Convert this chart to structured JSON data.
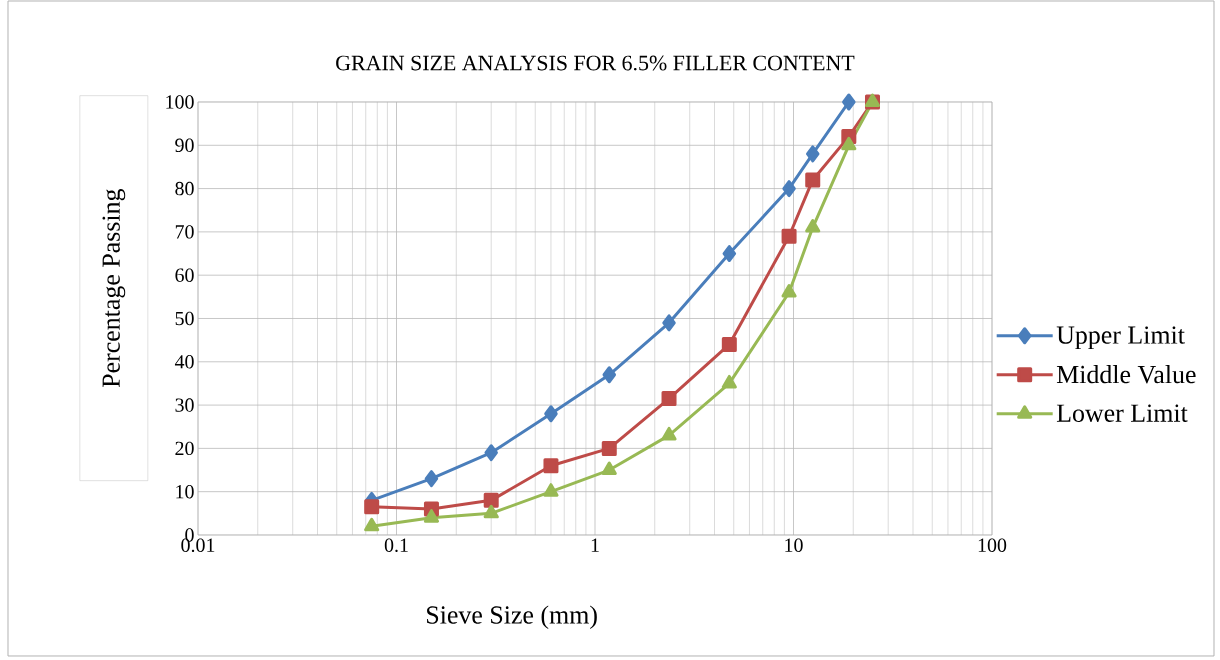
{
  "chart_data": {
    "type": "line",
    "title": "GRAIN SIZE ANALYSIS FOR 6.5%  FILLER CONTENT",
    "xlabel": "Sieve Size (mm)",
    "ylabel": "Percentage Passing",
    "log": "x",
    "xlim": [
      0.01,
      100
    ],
    "xticks": [
      0.01,
      0.1,
      1,
      10,
      100
    ],
    "ylim": [
      0,
      100
    ],
    "yticks": [
      0,
      10,
      20,
      30,
      40,
      50,
      60,
      70,
      80,
      90,
      100
    ],
    "grid": true,
    "legend": "right",
    "line_style": "solid",
    "series": [
      {
        "name": "Upper Limit",
        "color": "#4a7ebb",
        "marker": "diamond",
        "x": [
          0.075,
          0.15,
          0.3,
          0.6,
          1.18,
          2.36,
          4.75,
          9.5,
          12.5,
          19
        ],
        "values": [
          8,
          13,
          19,
          28,
          37,
          49,
          65,
          80,
          88,
          100
        ]
      },
      {
        "name": "Middle Value",
        "color": "#be4b48",
        "marker": "square",
        "x": [
          0.075,
          0.15,
          0.3,
          0.6,
          1.18,
          2.36,
          4.75,
          9.5,
          12.5,
          19,
          25
        ],
        "values": [
          6.5,
          6,
          8,
          16,
          20,
          31.5,
          44,
          69,
          82,
          92,
          100
        ]
      },
      {
        "name": "Lower Limit",
        "color": "#98b954",
        "marker": "triangle",
        "x": [
          0.075,
          0.15,
          0.3,
          0.6,
          1.18,
          2.36,
          4.75,
          9.5,
          12.5,
          19,
          25
        ],
        "values": [
          2,
          4,
          5,
          10,
          15,
          23,
          35,
          56,
          71,
          90,
          100
        ]
      }
    ]
  }
}
